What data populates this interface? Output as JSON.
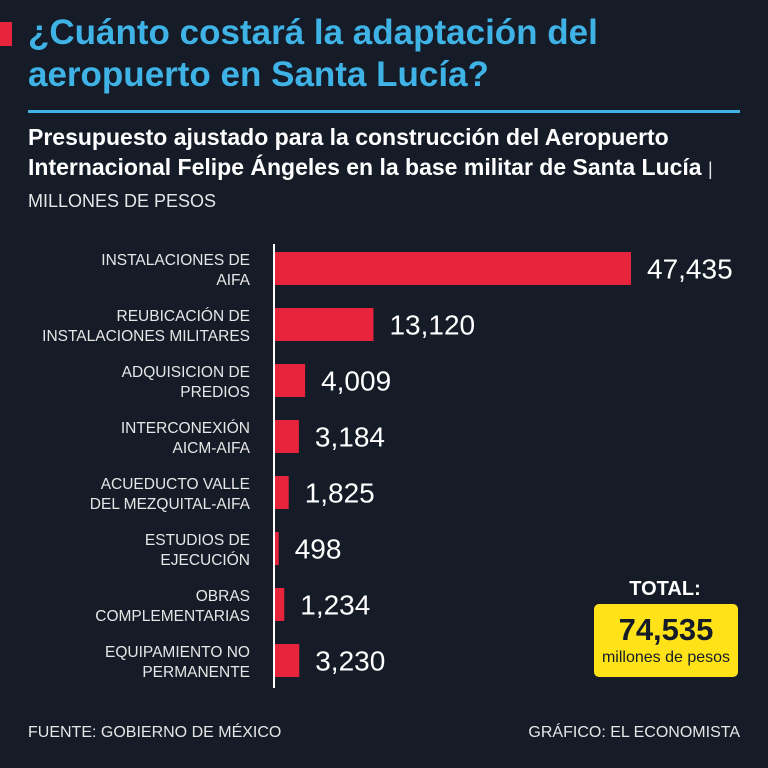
{
  "header": {
    "title": "¿Cuánto costará la adaptación del aeropuerto en Santa Lucía?",
    "subtitle": "Presupuesto ajustado para la construcción del Aeropuerto Internacional Felipe Ángeles en la base militar de Santa Lucía",
    "units": "| MILLONES DE PESOS"
  },
  "colors": {
    "bar": "#e8243c",
    "accent": "#3fb3e6",
    "total_box": "#ffe318",
    "background": "#151c28"
  },
  "chart_data": {
    "type": "bar",
    "orientation": "horizontal",
    "categories": [
      [
        "INSTALACIONES DE",
        "AIFA"
      ],
      [
        "REUBICACIÓN DE",
        "INSTALACIONES MILITARES"
      ],
      [
        "ADQUISICION DE",
        "PREDIOS"
      ],
      [
        "INTERCONEXIÓN",
        "AICM-AIFA"
      ],
      [
        "ACUEDUCTO VALLE",
        "DEL MEZQUITAL-AIFA"
      ],
      [
        "ESTUDIOS DE",
        "EJECUCIÓN"
      ],
      [
        "OBRAS",
        "COMPLEMENTARIAS"
      ],
      [
        "EQUIPAMIENTO NO",
        "PERMANENTE"
      ]
    ],
    "values": [
      47435,
      13120,
      4009,
      3184,
      1825,
      498,
      1234,
      3230
    ],
    "value_labels": [
      "47,435",
      "13,120",
      "4,009",
      "3,184",
      "1,825",
      "498",
      "1,234",
      "3,230"
    ],
    "xlim": [
      0,
      47435
    ],
    "ylabel": "MILLONES DE PESOS"
  },
  "total": {
    "label": "TOTAL:",
    "value": "74,535",
    "unit": "millones de pesos"
  },
  "footer": {
    "source": "FUENTE: GOBIERNO DE MÉXICO",
    "credit": "GRÁFICO: EL ECONOMISTA"
  }
}
